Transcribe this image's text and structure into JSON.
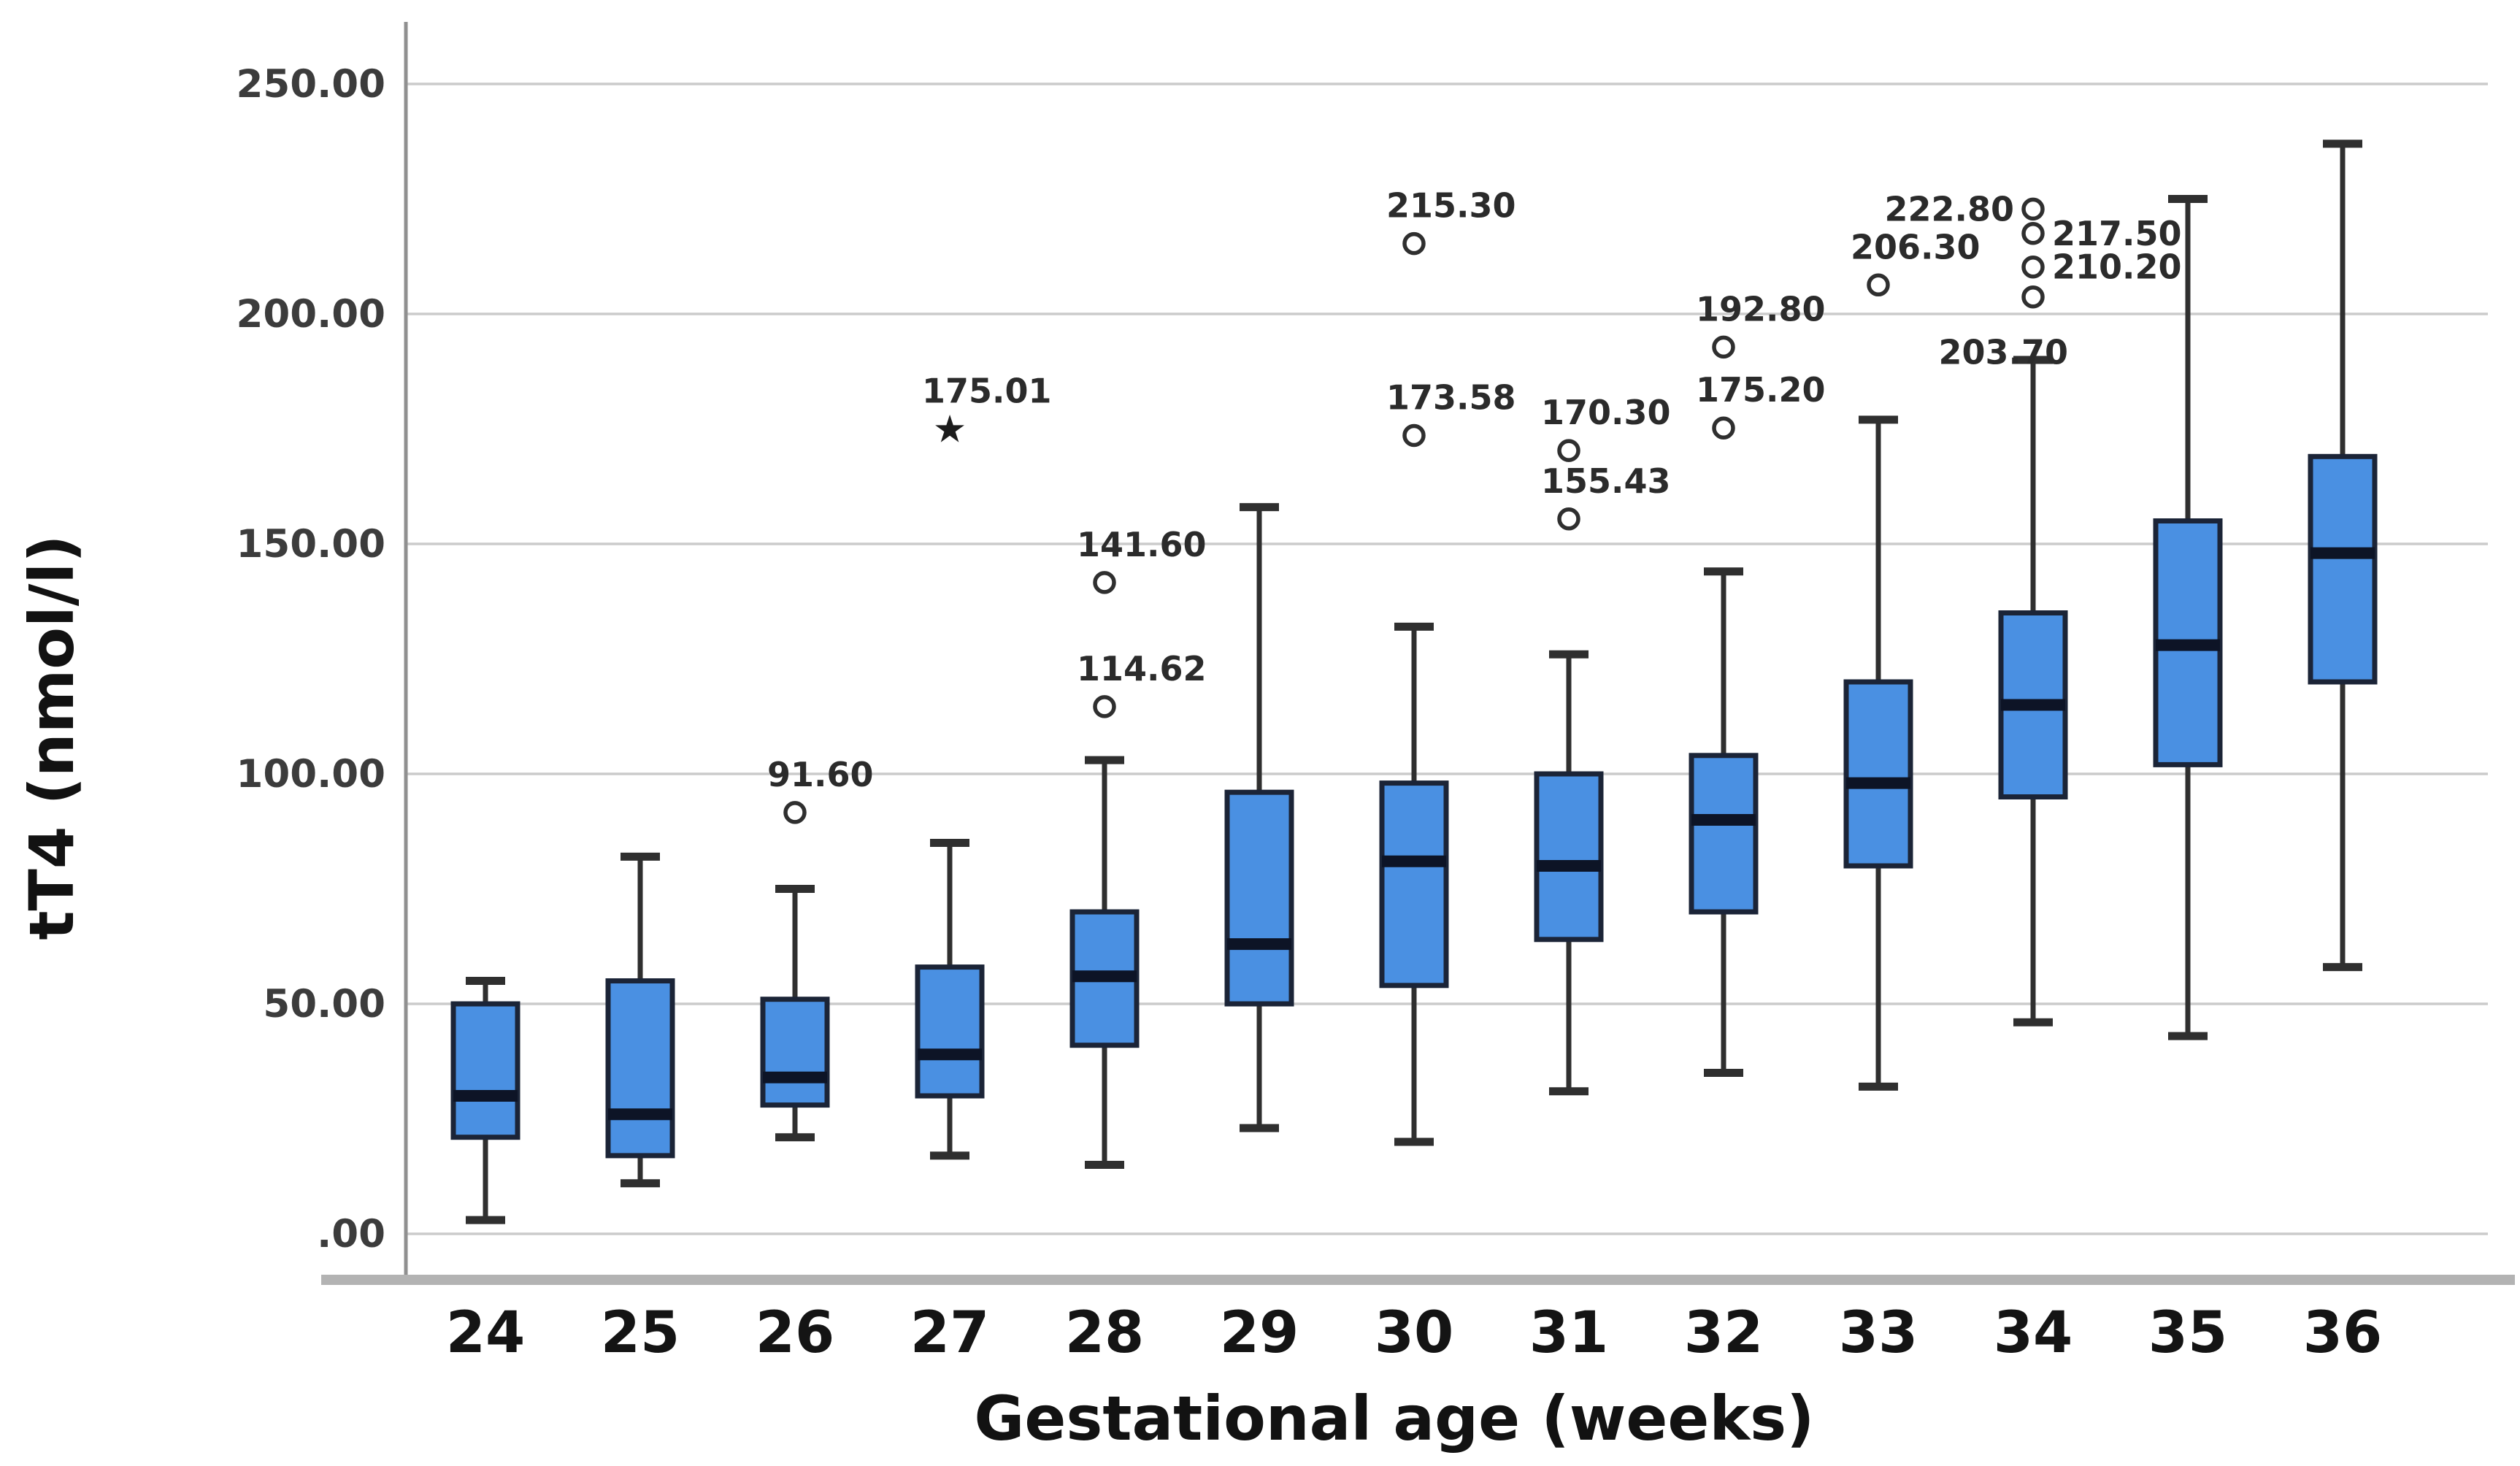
{
  "figure": {
    "kind": "SPSS-style boxplot figure",
    "background": "#ffffff"
  },
  "chart_data": {
    "type": "boxplot",
    "title": "",
    "xlabel": "Gestational age (weeks)",
    "ylabel": "tT4 (nmol/l)",
    "ylim": [
      0,
      263
    ],
    "grid": "horizontal",
    "legend": "none",
    "yticks": [
      {
        "value": 0,
        "label": ".00"
      },
      {
        "value": 50,
        "label": "50.00"
      },
      {
        "value": 100,
        "label": "100.00"
      },
      {
        "value": 150,
        "label": "150.00"
      },
      {
        "value": 200,
        "label": "200.00"
      },
      {
        "value": 250,
        "label": "250.00"
      }
    ],
    "categories": [
      "24",
      "25",
      "26",
      "27",
      "28",
      "29",
      "30",
      "31",
      "32",
      "33",
      "34",
      "35",
      "36"
    ],
    "boxes": [
      {
        "week": "24",
        "whisker_low": 3,
        "q1": 21,
        "median": 30,
        "q3": 50,
        "whisker_high": 55,
        "outliers": []
      },
      {
        "week": "25",
        "whisker_low": 11,
        "q1": 17,
        "median": 26,
        "q3": 55,
        "whisker_high": 82,
        "outliers": []
      },
      {
        "week": "26",
        "whisker_low": 21,
        "q1": 28,
        "median": 34,
        "q3": 51,
        "whisker_high": 75,
        "outliers": [
          {
            "value": 91.6,
            "label": "91.60",
            "marker": "circle",
            "label_pos": "above"
          }
        ]
      },
      {
        "week": "27",
        "whisker_low": 17,
        "q1": 30,
        "median": 39,
        "q3": 58,
        "whisker_high": 85,
        "outliers": [
          {
            "value": 175.01,
            "label": "175.01",
            "marker": "star",
            "label_pos": "above"
          }
        ]
      },
      {
        "week": "28",
        "whisker_low": 15,
        "q1": 41,
        "median": 56,
        "q3": 70,
        "whisker_high": 103,
        "outliers": [
          {
            "value": 141.6,
            "label": "141.60",
            "marker": "circle",
            "label_pos": "above"
          },
          {
            "value": 114.62,
            "label": "114.62",
            "marker": "circle",
            "label_pos": "above"
          }
        ]
      },
      {
        "week": "29",
        "whisker_low": 23,
        "q1": 50,
        "median": 63,
        "q3": 96,
        "whisker_high": 158,
        "outliers": []
      },
      {
        "week": "30",
        "whisker_low": 20,
        "q1": 54,
        "median": 81,
        "q3": 98,
        "whisker_high": 132,
        "outliers": [
          {
            "value": 215.3,
            "label": "215.30",
            "marker": "circle",
            "label_pos": "above"
          },
          {
            "value": 173.58,
            "label": "173.58",
            "marker": "circle",
            "label_pos": "above"
          }
        ]
      },
      {
        "week": "31",
        "whisker_low": 31,
        "q1": 64,
        "median": 80,
        "q3": 100,
        "whisker_high": 126,
        "outliers": [
          {
            "value": 170.3,
            "label": "170.30",
            "marker": "circle",
            "label_pos": "above"
          },
          {
            "value": 155.43,
            "label": "155.43",
            "marker": "circle",
            "label_pos": "above"
          }
        ]
      },
      {
        "week": "32",
        "whisker_low": 35,
        "q1": 70,
        "median": 90,
        "q3": 104,
        "whisker_high": 144,
        "outliers": [
          {
            "value": 192.8,
            "label": "192.80",
            "marker": "circle",
            "label_pos": "above"
          },
          {
            "value": 175.2,
            "label": "175.20",
            "marker": "circle",
            "label_pos": "above"
          }
        ]
      },
      {
        "week": "33",
        "whisker_low": 32,
        "q1": 80,
        "median": 98,
        "q3": 120,
        "whisker_high": 177,
        "outliers": [
          {
            "value": 206.3,
            "label": "206.30",
            "marker": "circle",
            "label_pos": "above"
          }
        ]
      },
      {
        "week": "34",
        "whisker_low": 46,
        "q1": 95,
        "median": 115,
        "q3": 135,
        "whisker_high": 190,
        "outliers": [
          {
            "value": 222.8,
            "label": "222.80",
            "marker": "circle",
            "label_pos": "left"
          },
          {
            "value": 217.5,
            "label": "217.50",
            "marker": "circle",
            "label_pos": "right"
          },
          {
            "value": 210.2,
            "label": "210.20",
            "marker": "circle",
            "label_pos": "right"
          },
          {
            "value": 203.7,
            "label": "203.70",
            "marker": "circle",
            "label_pos": "below_left"
          }
        ]
      },
      {
        "week": "35",
        "whisker_low": 43,
        "q1": 102,
        "median": 128,
        "q3": 155,
        "whisker_high": 225,
        "outliers": []
      },
      {
        "week": "36",
        "whisker_low": 58,
        "q1": 120,
        "median": 148,
        "q3": 169,
        "whisker_high": 237,
        "outliers": []
      }
    ],
    "colors": {
      "box_fill": "#4a90e2",
      "box_border": "#1b2437",
      "median": "#0d1426",
      "whisker": "#2f2f2f",
      "outlier_stroke": "#2f2f2f",
      "gridline": "#cbcbcb",
      "y_axis_line": "#909090",
      "x_axis_band": "#b3b3b3",
      "ytick_text": "#3c3c3c",
      "xtick_text": "#141414",
      "label_text": "#2b2b2b"
    }
  }
}
